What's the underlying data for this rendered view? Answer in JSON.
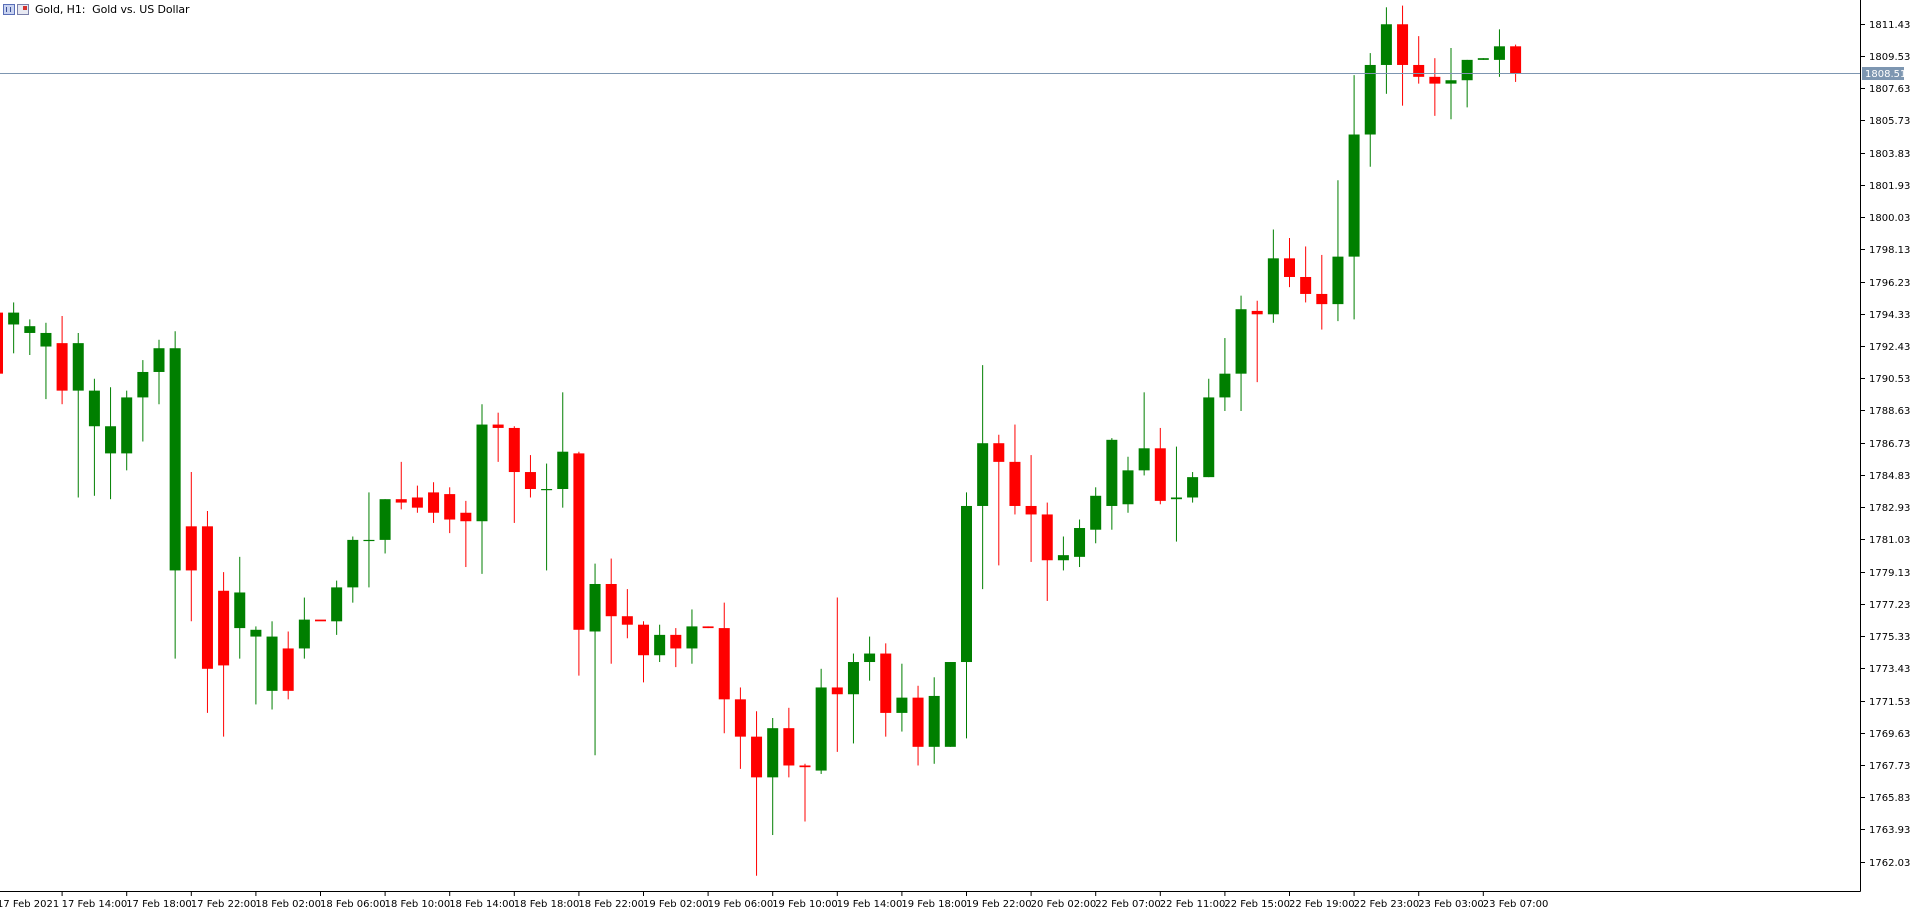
{
  "header": {
    "title": "Gold, H1:  Gold vs. US Dollar",
    "icons": [
      "chart-window-icon",
      "chart-properties-icon"
    ]
  },
  "colors": {
    "bull": "#007f00",
    "bear": "#ff0000",
    "bid_line": "#7d96b1",
    "bid_label_bg": "#7d96b1",
    "axis": "#000000",
    "background": "#ffffff"
  },
  "chart_data": {
    "type": "candlestick",
    "symbol": "Gold",
    "timeframe": "H1",
    "ylim": [
      1760.3,
      1812.83
    ],
    "y_ticks": [
      "1811.43",
      "1809.53",
      "1807.63",
      "1805.73",
      "1803.83",
      "1801.93",
      "1800.03",
      "1798.13",
      "1796.23",
      "1794.33",
      "1792.43",
      "1790.53",
      "1788.63",
      "1786.73",
      "1784.83",
      "1782.93",
      "1781.03",
      "1779.13",
      "1777.23",
      "1775.33",
      "1773.43",
      "1771.53",
      "1769.63",
      "1767.73",
      "1765.83",
      "1763.93",
      "1762.03"
    ],
    "x_labels": [
      "17 Feb 2021",
      "17 Feb 14:00",
      "17 Feb 18:00",
      "17 Feb 22:00",
      "18 Feb 02:00",
      "18 Feb 06:00",
      "18 Feb 10:00",
      "18 Feb 14:00",
      "18 Feb 18:00",
      "18 Feb 22:00",
      "19 Feb 02:00",
      "19 Feb 06:00",
      "19 Feb 10:00",
      "19 Feb 14:00",
      "19 Feb 18:00",
      "19 Feb 22:00",
      "20 Feb 02:00",
      "22 Feb 07:00",
      "22 Feb 11:00",
      "22 Feb 15:00",
      "22 Feb 19:00",
      "22 Feb 23:00",
      "23 Feb 03:00",
      "23 Feb 07:00"
    ],
    "x_label_every": 4,
    "bid": "1808.51",
    "grid": false,
    "candles": [
      {
        "o": 1794.4,
        "h": 1794.5,
        "l": 1790.8,
        "c": 1790.8
      },
      {
        "o": 1793.7,
        "h": 1795.0,
        "l": 1792.0,
        "c": 1794.4
      },
      {
        "o": 1793.2,
        "h": 1794.0,
        "l": 1791.9,
        "c": 1793.6
      },
      {
        "o": 1792.4,
        "h": 1793.8,
        "l": 1789.3,
        "c": 1793.2
      },
      {
        "o": 1792.6,
        "h": 1794.2,
        "l": 1789.0,
        "c": 1789.8
      },
      {
        "o": 1789.8,
        "h": 1793.2,
        "l": 1783.5,
        "c": 1792.6
      },
      {
        "o": 1787.7,
        "h": 1790.5,
        "l": 1783.6,
        "c": 1789.8
      },
      {
        "o": 1786.1,
        "h": 1790.0,
        "l": 1783.4,
        "c": 1787.7
      },
      {
        "o": 1786.1,
        "h": 1789.8,
        "l": 1785.1,
        "c": 1789.4
      },
      {
        "o": 1789.4,
        "h": 1791.6,
        "l": 1786.8,
        "c": 1790.9
      },
      {
        "o": 1790.9,
        "h": 1792.8,
        "l": 1789.0,
        "c": 1792.3
      },
      {
        "o": 1779.2,
        "h": 1793.3,
        "l": 1774.0,
        "c": 1792.3
      },
      {
        "o": 1781.8,
        "h": 1785.0,
        "l": 1776.2,
        "c": 1779.2
      },
      {
        "o": 1781.8,
        "h": 1782.7,
        "l": 1770.8,
        "c": 1773.4
      },
      {
        "o": 1778.0,
        "h": 1779.1,
        "l": 1769.4,
        "c": 1773.6
      },
      {
        "o": 1775.8,
        "h": 1780.0,
        "l": 1774.0,
        "c": 1777.9
      },
      {
        "o": 1775.3,
        "h": 1775.9,
        "l": 1771.3,
        "c": 1775.7
      },
      {
        "o": 1772.1,
        "h": 1776.2,
        "l": 1771.0,
        "c": 1775.3
      },
      {
        "o": 1774.6,
        "h": 1775.6,
        "l": 1771.6,
        "c": 1772.1
      },
      {
        "o": 1774.6,
        "h": 1777.6,
        "l": 1774.0,
        "c": 1776.3
      },
      {
        "o": 1776.3,
        "h": 1776.3,
        "l": 1776.3,
        "c": 1776.2
      },
      {
        "o": 1776.2,
        "h": 1778.6,
        "l": 1775.4,
        "c": 1778.2
      },
      {
        "o": 1778.2,
        "h": 1781.2,
        "l": 1777.3,
        "c": 1781.0
      },
      {
        "o": 1781.0,
        "h": 1783.8,
        "l": 1778.2,
        "c": 1781.0
      },
      {
        "o": 1781.0,
        "h": 1783.4,
        "l": 1780.2,
        "c": 1783.4
      },
      {
        "o": 1783.4,
        "h": 1785.6,
        "l": 1782.8,
        "c": 1783.2
      },
      {
        "o": 1783.5,
        "h": 1784.2,
        "l": 1782.6,
        "c": 1782.9
      },
      {
        "o": 1783.8,
        "h": 1784.4,
        "l": 1782.0,
        "c": 1782.6
      },
      {
        "o": 1783.7,
        "h": 1784.1,
        "l": 1781.4,
        "c": 1782.2
      },
      {
        "o": 1782.6,
        "h": 1783.3,
        "l": 1779.4,
        "c": 1782.1
      },
      {
        "o": 1782.1,
        "h": 1789.0,
        "l": 1779.0,
        "c": 1787.8
      },
      {
        "o": 1787.8,
        "h": 1788.5,
        "l": 1785.6,
        "c": 1787.6
      },
      {
        "o": 1787.6,
        "h": 1787.7,
        "l": 1782.0,
        "c": 1785.0
      },
      {
        "o": 1785.0,
        "h": 1786.0,
        "l": 1783.5,
        "c": 1784.0
      },
      {
        "o": 1784.0,
        "h": 1785.5,
        "l": 1779.2,
        "c": 1784.0
      },
      {
        "o": 1784.0,
        "h": 1789.7,
        "l": 1782.9,
        "c": 1786.2
      },
      {
        "o": 1786.1,
        "h": 1786.2,
        "l": 1773.0,
        "c": 1775.7
      },
      {
        "o": 1775.6,
        "h": 1779.6,
        "l": 1768.3,
        "c": 1778.4
      },
      {
        "o": 1778.4,
        "h": 1779.9,
        "l": 1773.7,
        "c": 1776.5
      },
      {
        "o": 1776.5,
        "h": 1778.1,
        "l": 1775.2,
        "c": 1776.0
      },
      {
        "o": 1776.0,
        "h": 1776.2,
        "l": 1772.6,
        "c": 1774.2
      },
      {
        "o": 1774.2,
        "h": 1776.0,
        "l": 1773.8,
        "c": 1775.4
      },
      {
        "o": 1775.4,
        "h": 1775.8,
        "l": 1773.5,
        "c": 1774.6
      },
      {
        "o": 1774.6,
        "h": 1776.9,
        "l": 1773.7,
        "c": 1775.9
      },
      {
        "o": 1775.9,
        "h": 1775.9,
        "l": 1775.8,
        "c": 1775.8
      },
      {
        "o": 1775.8,
        "h": 1777.3,
        "l": 1769.6,
        "c": 1771.6
      },
      {
        "o": 1771.6,
        "h": 1772.3,
        "l": 1767.5,
        "c": 1769.4
      },
      {
        "o": 1769.4,
        "h": 1770.9,
        "l": 1761.2,
        "c": 1767.0
      },
      {
        "o": 1767.0,
        "h": 1770.5,
        "l": 1763.6,
        "c": 1769.9
      },
      {
        "o": 1769.9,
        "h": 1771.1,
        "l": 1767.0,
        "c": 1767.7
      },
      {
        "o": 1767.7,
        "h": 1767.8,
        "l": 1764.4,
        "c": 1767.6
      },
      {
        "o": 1767.4,
        "h": 1773.4,
        "l": 1767.2,
        "c": 1772.3
      },
      {
        "o": 1772.3,
        "h": 1777.6,
        "l": 1768.5,
        "c": 1771.9
      },
      {
        "o": 1771.9,
        "h": 1774.3,
        "l": 1769.0,
        "c": 1773.8
      },
      {
        "o": 1773.8,
        "h": 1775.3,
        "l": 1772.7,
        "c": 1774.3
      },
      {
        "o": 1774.3,
        "h": 1774.9,
        "l": 1769.4,
        "c": 1770.8
      },
      {
        "o": 1770.8,
        "h": 1773.7,
        "l": 1769.7,
        "c": 1771.7
      },
      {
        "o": 1771.7,
        "h": 1772.4,
        "l": 1767.7,
        "c": 1768.8
      },
      {
        "o": 1768.8,
        "h": 1772.9,
        "l": 1767.8,
        "c": 1771.8
      },
      {
        "o": 1768.8,
        "h": 1773.8,
        "l": 1768.8,
        "c": 1773.8
      },
      {
        "o": 1773.8,
        "h": 1783.8,
        "l": 1769.3,
        "c": 1783.0
      },
      {
        "o": 1783.0,
        "h": 1791.3,
        "l": 1778.1,
        "c": 1786.7
      },
      {
        "o": 1786.7,
        "h": 1787.2,
        "l": 1779.5,
        "c": 1785.6
      },
      {
        "o": 1785.6,
        "h": 1787.8,
        "l": 1782.5,
        "c": 1783.0
      },
      {
        "o": 1783.0,
        "h": 1786.0,
        "l": 1779.7,
        "c": 1782.5
      },
      {
        "o": 1782.5,
        "h": 1783.2,
        "l": 1777.4,
        "c": 1779.8
      },
      {
        "o": 1779.8,
        "h": 1781.2,
        "l": 1779.2,
        "c": 1780.1
      },
      {
        "o": 1780.0,
        "h": 1782.2,
        "l": 1779.4,
        "c": 1781.7
      },
      {
        "o": 1781.6,
        "h": 1784.1,
        "l": 1780.8,
        "c": 1783.6
      },
      {
        "o": 1783.0,
        "h": 1787.0,
        "l": 1781.6,
        "c": 1786.9
      },
      {
        "o": 1783.1,
        "h": 1785.9,
        "l": 1782.6,
        "c": 1785.1
      },
      {
        "o": 1785.1,
        "h": 1789.7,
        "l": 1784.8,
        "c": 1786.4
      },
      {
        "o": 1786.4,
        "h": 1787.6,
        "l": 1783.1,
        "c": 1783.3
      },
      {
        "o": 1783.4,
        "h": 1786.5,
        "l": 1780.9,
        "c": 1783.5
      },
      {
        "o": 1783.5,
        "h": 1785.0,
        "l": 1783.2,
        "c": 1784.7
      },
      {
        "o": 1784.7,
        "h": 1790.5,
        "l": 1784.7,
        "c": 1789.4
      },
      {
        "o": 1789.4,
        "h": 1792.9,
        "l": 1788.6,
        "c": 1790.8
      },
      {
        "o": 1790.8,
        "h": 1795.4,
        "l": 1788.6,
        "c": 1794.6
      },
      {
        "o": 1794.5,
        "h": 1795.1,
        "l": 1790.3,
        "c": 1794.3
      },
      {
        "o": 1794.3,
        "h": 1799.3,
        "l": 1793.8,
        "c": 1797.6
      },
      {
        "o": 1797.6,
        "h": 1798.8,
        "l": 1795.9,
        "c": 1796.5
      },
      {
        "o": 1796.5,
        "h": 1798.3,
        "l": 1795.0,
        "c": 1795.5
      },
      {
        "o": 1795.5,
        "h": 1797.8,
        "l": 1793.4,
        "c": 1794.9
      },
      {
        "o": 1794.9,
        "h": 1802.2,
        "l": 1793.9,
        "c": 1797.7
      },
      {
        "o": 1797.7,
        "h": 1808.4,
        "l": 1794.0,
        "c": 1804.9
      },
      {
        "o": 1804.9,
        "h": 1809.7,
        "l": 1803.0,
        "c": 1809.0
      },
      {
        "o": 1809.0,
        "h": 1812.4,
        "l": 1807.3,
        "c": 1811.4
      },
      {
        "o": 1811.4,
        "h": 1812.5,
        "l": 1806.6,
        "c": 1809.0
      },
      {
        "o": 1809.0,
        "h": 1810.7,
        "l": 1807.9,
        "c": 1808.3
      },
      {
        "o": 1808.3,
        "h": 1809.4,
        "l": 1806.0,
        "c": 1807.9
      },
      {
        "o": 1807.9,
        "h": 1810.0,
        "l": 1805.8,
        "c": 1808.1
      },
      {
        "o": 1808.1,
        "h": 1809.3,
        "l": 1806.5,
        "c": 1809.3
      },
      {
        "o": 1809.3,
        "h": 1809.4,
        "l": 1809.3,
        "c": 1809.4
      },
      {
        "o": 1809.3,
        "h": 1811.1,
        "l": 1808.3,
        "c": 1810.1
      },
      {
        "o": 1810.1,
        "h": 1810.2,
        "l": 1808.0,
        "c": 1808.5
      }
    ]
  }
}
